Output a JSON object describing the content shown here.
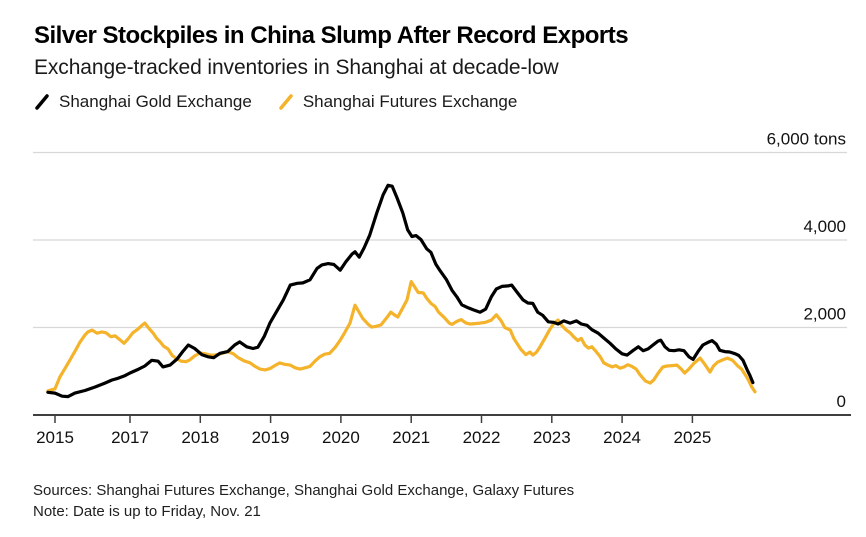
{
  "header": {
    "title": "Silver Stockpiles in China Slump After Record Exports",
    "subtitle": "Exchange-tracked inventories in Shanghai at decade-low"
  },
  "legend": [
    {
      "label": "Shanghai Gold Exchange",
      "color": "#000000",
      "icon": "slash-mark-icon"
    },
    {
      "label": "Shanghai Futures Exchange",
      "color": "#F4B32A",
      "icon": "slash-mark-icon"
    }
  ],
  "footer": {
    "sources": "Sources: Shanghai Futures Exchange, Shanghai Gold Exchange, Galaxy Futures",
    "note": "Note: Date is up to Friday, Nov. 21"
  },
  "chart_data": {
    "type": "line",
    "title": "Silver Stockpiles in China Slump After Record Exports",
    "subtitle": "Exchange-tracked inventories in Shanghai at decade-low",
    "xlabel": "",
    "ylabel": "tons",
    "unit": "tons",
    "ylim": [
      0,
      6000
    ],
    "y_ticks": [
      0,
      2000,
      4000,
      6000
    ],
    "y_tick_labels": [
      "0",
      "2,000",
      "4,000",
      "6,000 tons"
    ],
    "x_ticks": [
      2015,
      2017,
      2018,
      2019,
      2020,
      2021,
      2022,
      2023,
      2024,
      2025
    ],
    "x_tick_labels": [
      "2015",
      "2017",
      "2018",
      "2019",
      "2020",
      "2021",
      "2022",
      "2023",
      "2024",
      "2025"
    ],
    "axis_note": "x tick labels skip 2016; ticks are evenly spaced on the printed axis",
    "grid": "horizontal",
    "legend_position": "top-left",
    "series": [
      {
        "name": "Shanghai Gold Exchange",
        "color": "#000000",
        "points": [
          [
            2014.81,
            520
          ],
          [
            2015.0,
            500
          ],
          [
            2015.19,
            430
          ],
          [
            2015.35,
            420
          ],
          [
            2015.53,
            500
          ],
          [
            2015.8,
            560
          ],
          [
            2016.07,
            640
          ],
          [
            2016.33,
            730
          ],
          [
            2016.52,
            800
          ],
          [
            2016.68,
            840
          ],
          [
            2016.87,
            900
          ],
          [
            2017.0,
            960
          ],
          [
            2017.1,
            1030
          ],
          [
            2017.21,
            1120
          ],
          [
            2017.31,
            1250
          ],
          [
            2017.4,
            1230
          ],
          [
            2017.47,
            1100
          ],
          [
            2017.57,
            1140
          ],
          [
            2017.67,
            1280
          ],
          [
            2017.75,
            1450
          ],
          [
            2017.83,
            1600
          ],
          [
            2017.92,
            1520
          ],
          [
            2018.02,
            1380
          ],
          [
            2018.11,
            1330
          ],
          [
            2018.19,
            1310
          ],
          [
            2018.28,
            1410
          ],
          [
            2018.39,
            1450
          ],
          [
            2018.49,
            1600
          ],
          [
            2018.56,
            1670
          ],
          [
            2018.66,
            1560
          ],
          [
            2018.75,
            1520
          ],
          [
            2018.82,
            1550
          ],
          [
            2018.91,
            1800
          ],
          [
            2018.99,
            2100
          ],
          [
            2019.08,
            2350
          ],
          [
            2019.18,
            2630
          ],
          [
            2019.28,
            2970
          ],
          [
            2019.38,
            3010
          ],
          [
            2019.46,
            3020
          ],
          [
            2019.56,
            3090
          ],
          [
            2019.66,
            3350
          ],
          [
            2019.73,
            3430
          ],
          [
            2019.82,
            3460
          ],
          [
            2019.9,
            3440
          ],
          [
            2019.99,
            3310
          ],
          [
            2020.07,
            3500
          ],
          [
            2020.16,
            3680
          ],
          [
            2020.2,
            3730
          ],
          [
            2020.26,
            3610
          ],
          [
            2020.33,
            3820
          ],
          [
            2020.41,
            4110
          ],
          [
            2020.51,
            4620
          ],
          [
            2020.6,
            5030
          ],
          [
            2020.67,
            5250
          ],
          [
            2020.73,
            5230
          ],
          [
            2020.8,
            4960
          ],
          [
            2020.88,
            4620
          ],
          [
            2020.95,
            4230
          ],
          [
            2021.01,
            4080
          ],
          [
            2021.07,
            4100
          ],
          [
            2021.14,
            4010
          ],
          [
            2021.22,
            3800
          ],
          [
            2021.28,
            3720
          ],
          [
            2021.35,
            3450
          ],
          [
            2021.41,
            3300
          ],
          [
            2021.5,
            3100
          ],
          [
            2021.58,
            2850
          ],
          [
            2021.65,
            2700
          ],
          [
            2021.72,
            2520
          ],
          [
            2021.81,
            2450
          ],
          [
            2021.89,
            2400
          ],
          [
            2021.98,
            2350
          ],
          [
            2022.06,
            2420
          ],
          [
            2022.14,
            2700
          ],
          [
            2022.21,
            2880
          ],
          [
            2022.29,
            2940
          ],
          [
            2022.38,
            2950
          ],
          [
            2022.43,
            2970
          ],
          [
            2022.5,
            2820
          ],
          [
            2022.59,
            2630
          ],
          [
            2022.66,
            2560
          ],
          [
            2022.73,
            2550
          ],
          [
            2022.8,
            2350
          ],
          [
            2022.87,
            2280
          ],
          [
            2022.95,
            2130
          ],
          [
            2023.02,
            2120
          ],
          [
            2023.09,
            2080
          ],
          [
            2023.17,
            2150
          ],
          [
            2023.26,
            2100
          ],
          [
            2023.35,
            2150
          ],
          [
            2023.42,
            2080
          ],
          [
            2023.5,
            2050
          ],
          [
            2023.57,
            1950
          ],
          [
            2023.66,
            1870
          ],
          [
            2023.74,
            1760
          ],
          [
            2023.83,
            1640
          ],
          [
            2023.91,
            1510
          ],
          [
            2024.0,
            1400
          ],
          [
            2024.07,
            1370
          ],
          [
            2024.16,
            1480
          ],
          [
            2024.23,
            1560
          ],
          [
            2024.3,
            1470
          ],
          [
            2024.37,
            1510
          ],
          [
            2024.44,
            1600
          ],
          [
            2024.51,
            1690
          ],
          [
            2024.55,
            1710
          ],
          [
            2024.61,
            1560
          ],
          [
            2024.67,
            1480
          ],
          [
            2024.74,
            1470
          ],
          [
            2024.81,
            1490
          ],
          [
            2024.88,
            1470
          ],
          [
            2024.95,
            1330
          ],
          [
            2025.01,
            1270
          ],
          [
            2025.08,
            1450
          ],
          [
            2025.15,
            1600
          ],
          [
            2025.22,
            1660
          ],
          [
            2025.28,
            1700
          ],
          [
            2025.34,
            1620
          ],
          [
            2025.39,
            1480
          ],
          [
            2025.46,
            1450
          ],
          [
            2025.53,
            1440
          ],
          [
            2025.61,
            1400
          ],
          [
            2025.66,
            1360
          ],
          [
            2025.72,
            1250
          ],
          [
            2025.78,
            1030
          ],
          [
            2025.82,
            900
          ],
          [
            2025.86,
            740
          ]
        ]
      },
      {
        "name": "Shanghai Futures Exchange",
        "color": "#F4B32A",
        "points": [
          [
            2014.81,
            550
          ],
          [
            2015.0,
            600
          ],
          [
            2015.13,
            870
          ],
          [
            2015.29,
            1100
          ],
          [
            2015.4,
            1260
          ],
          [
            2015.56,
            1500
          ],
          [
            2015.67,
            1670
          ],
          [
            2015.8,
            1830
          ],
          [
            2015.88,
            1900
          ],
          [
            2015.99,
            1940
          ],
          [
            2016.12,
            1870
          ],
          [
            2016.25,
            1900
          ],
          [
            2016.36,
            1880
          ],
          [
            2016.49,
            1790
          ],
          [
            2016.6,
            1810
          ],
          [
            2016.73,
            1720
          ],
          [
            2016.84,
            1640
          ],
          [
            2016.95,
            1740
          ],
          [
            2017.04,
            1880
          ],
          [
            2017.11,
            1960
          ],
          [
            2017.17,
            2050
          ],
          [
            2017.21,
            2100
          ],
          [
            2017.27,
            1980
          ],
          [
            2017.33,
            1870
          ],
          [
            2017.38,
            1750
          ],
          [
            2017.43,
            1670
          ],
          [
            2017.48,
            1570
          ],
          [
            2017.54,
            1510
          ],
          [
            2017.6,
            1360
          ],
          [
            2017.67,
            1280
          ],
          [
            2017.73,
            1230
          ],
          [
            2017.8,
            1220
          ],
          [
            2017.85,
            1260
          ],
          [
            2017.92,
            1350
          ],
          [
            2018.0,
            1420
          ],
          [
            2018.07,
            1400
          ],
          [
            2018.14,
            1370
          ],
          [
            2018.21,
            1370
          ],
          [
            2018.31,
            1410
          ],
          [
            2018.39,
            1450
          ],
          [
            2018.47,
            1400
          ],
          [
            2018.54,
            1310
          ],
          [
            2018.62,
            1240
          ],
          [
            2018.71,
            1190
          ],
          [
            2018.78,
            1110
          ],
          [
            2018.85,
            1050
          ],
          [
            2018.92,
            1030
          ],
          [
            2018.99,
            1060
          ],
          [
            2019.06,
            1130
          ],
          [
            2019.13,
            1190
          ],
          [
            2019.2,
            1160
          ],
          [
            2019.28,
            1140
          ],
          [
            2019.35,
            1080
          ],
          [
            2019.42,
            1050
          ],
          [
            2019.49,
            1080
          ],
          [
            2019.56,
            1110
          ],
          [
            2019.63,
            1230
          ],
          [
            2019.7,
            1330
          ],
          [
            2019.77,
            1390
          ],
          [
            2019.84,
            1410
          ],
          [
            2019.92,
            1550
          ],
          [
            2019.99,
            1710
          ],
          [
            2020.06,
            1900
          ],
          [
            2020.13,
            2100
          ],
          [
            2020.2,
            2510
          ],
          [
            2020.24,
            2400
          ],
          [
            2020.31,
            2210
          ],
          [
            2020.39,
            2070
          ],
          [
            2020.44,
            2010
          ],
          [
            2020.51,
            2030
          ],
          [
            2020.57,
            2060
          ],
          [
            2020.66,
            2240
          ],
          [
            2020.71,
            2350
          ],
          [
            2020.77,
            2280
          ],
          [
            2020.81,
            2240
          ],
          [
            2020.88,
            2450
          ],
          [
            2020.94,
            2630
          ],
          [
            2021.0,
            3050
          ],
          [
            2021.04,
            2950
          ],
          [
            2021.1,
            2800
          ],
          [
            2021.17,
            2790
          ],
          [
            2021.22,
            2670
          ],
          [
            2021.28,
            2550
          ],
          [
            2021.34,
            2480
          ],
          [
            2021.39,
            2350
          ],
          [
            2021.47,
            2230
          ],
          [
            2021.54,
            2100
          ],
          [
            2021.58,
            2070
          ],
          [
            2021.65,
            2140
          ],
          [
            2021.71,
            2180
          ],
          [
            2021.78,
            2100
          ],
          [
            2021.84,
            2080
          ],
          [
            2021.91,
            2090
          ],
          [
            2021.98,
            2100
          ],
          [
            2022.06,
            2120
          ],
          [
            2022.14,
            2170
          ],
          [
            2022.21,
            2290
          ],
          [
            2022.28,
            2150
          ],
          [
            2022.33,
            2000
          ],
          [
            2022.41,
            1940
          ],
          [
            2022.46,
            1750
          ],
          [
            2022.5,
            1650
          ],
          [
            2022.56,
            1500
          ],
          [
            2022.63,
            1380
          ],
          [
            2022.69,
            1440
          ],
          [
            2022.73,
            1370
          ],
          [
            2022.78,
            1430
          ],
          [
            2022.83,
            1550
          ],
          [
            2022.9,
            1750
          ],
          [
            2022.97,
            1950
          ],
          [
            2023.03,
            2100
          ],
          [
            2023.09,
            2170
          ],
          [
            2023.14,
            2050
          ],
          [
            2023.2,
            1950
          ],
          [
            2023.26,
            1880
          ],
          [
            2023.31,
            1790
          ],
          [
            2023.37,
            1700
          ],
          [
            2023.42,
            1750
          ],
          [
            2023.47,
            1600
          ],
          [
            2023.52,
            1530
          ],
          [
            2023.57,
            1560
          ],
          [
            2023.63,
            1450
          ],
          [
            2023.69,
            1330
          ],
          [
            2023.74,
            1190
          ],
          [
            2023.8,
            1140
          ],
          [
            2023.86,
            1100
          ],
          [
            2023.91,
            1130
          ],
          [
            2023.97,
            1070
          ],
          [
            2024.03,
            1100
          ],
          [
            2024.08,
            1150
          ],
          [
            2024.14,
            1110
          ],
          [
            2024.2,
            1050
          ],
          [
            2024.25,
            930
          ],
          [
            2024.33,
            780
          ],
          [
            2024.4,
            730
          ],
          [
            2024.45,
            800
          ],
          [
            2024.51,
            950
          ],
          [
            2024.58,
            1100
          ],
          [
            2024.64,
            1120
          ],
          [
            2024.71,
            1130
          ],
          [
            2024.78,
            1140
          ],
          [
            2024.84,
            1050
          ],
          [
            2024.89,
            960
          ],
          [
            2024.95,
            1050
          ],
          [
            2025.02,
            1180
          ],
          [
            2025.11,
            1300
          ],
          [
            2025.18,
            1150
          ],
          [
            2025.25,
            980
          ],
          [
            2025.3,
            1120
          ],
          [
            2025.36,
            1210
          ],
          [
            2025.43,
            1260
          ],
          [
            2025.5,
            1300
          ],
          [
            2025.57,
            1250
          ],
          [
            2025.64,
            1130
          ],
          [
            2025.7,
            1050
          ],
          [
            2025.76,
            900
          ],
          [
            2025.8,
            790
          ],
          [
            2025.84,
            650
          ],
          [
            2025.89,
            530
          ]
        ]
      }
    ],
    "colors": {
      "gridline": "#d8d8d8",
      "axis": "#3f3f3f",
      "tick_label": "#111111",
      "series_gold_exchange": "#000000",
      "series_futures_exchange": "#F4B32A"
    }
  }
}
